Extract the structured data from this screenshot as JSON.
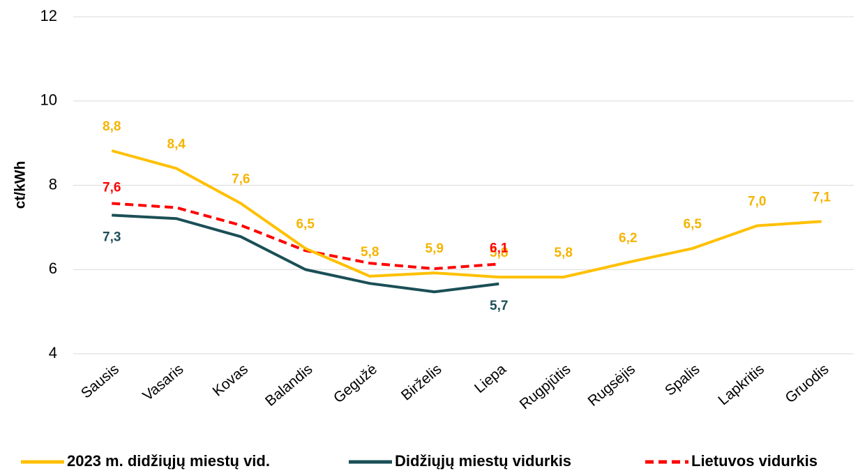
{
  "chart_data": {
    "type": "line",
    "y_label": "ct/kWh",
    "categories": [
      "Sausis",
      "Vasaris",
      "Kovas",
      "Balandis",
      "Gegužė",
      "Birželis",
      "Liepa",
      "Rugpjūtis",
      "Rugsėjis",
      "Spalis",
      "Lapkritis",
      "Gruodis"
    ],
    "series": [
      {
        "name": "2023 m. didžiųjų miestų vid.",
        "color": "#ffc000",
        "dash": false,
        "values": [
          8.82,
          8.4,
          7.57,
          6.5,
          5.84,
          5.92,
          5.82,
          5.82,
          6.17,
          6.5,
          7.04,
          7.14
        ],
        "value_labels": [
          "8,8",
          "8,4",
          "7,6",
          "6,5",
          "5,8",
          "5,9",
          "5,8",
          "5,8",
          "6,2",
          "6,5",
          "7,0",
          "7,1"
        ]
      },
      {
        "name": "Didžiųjų miestų vidurkis",
        "color": "#1b4f56",
        "dash": false,
        "values": [
          7.29,
          7.21,
          6.78,
          6.0,
          5.67,
          5.47,
          5.66,
          null,
          null,
          null,
          null,
          null
        ],
        "value_labels": [
          "7,3",
          null,
          null,
          null,
          null,
          null,
          "5,7",
          null,
          null,
          null,
          null,
          null
        ]
      },
      {
        "name": "Lietuvos vidurkis",
        "color": "#ff0000",
        "dash": true,
        "values": [
          7.57,
          7.47,
          7.05,
          6.45,
          6.15,
          6.02,
          6.13,
          null,
          null,
          null,
          null,
          null
        ],
        "value_labels": [
          "7,6",
          null,
          null,
          null,
          null,
          null,
          "6,1",
          null,
          null,
          null,
          null,
          null
        ]
      }
    ],
    "ylim": [
      4,
      12
    ],
    "yticks": [
      4,
      6,
      8,
      10,
      12
    ],
    "grid": true,
    "legend": "bottom"
  }
}
